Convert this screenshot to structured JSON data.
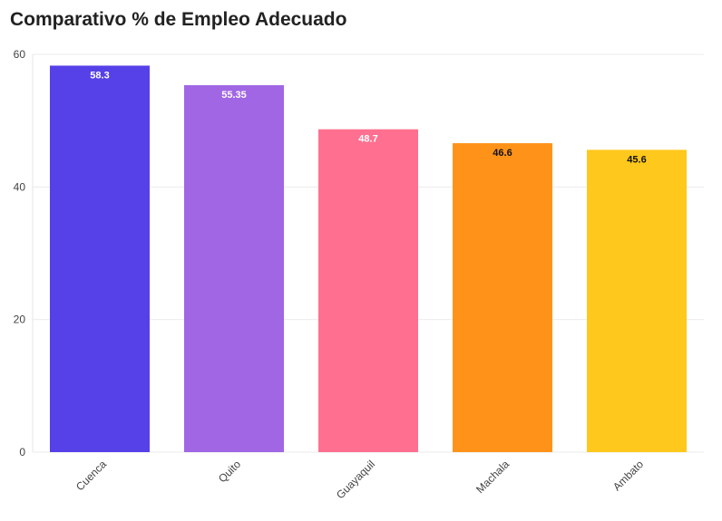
{
  "chart_data": {
    "type": "bar",
    "title": "Comparativo % de Empleo Adecuado",
    "categories": [
      "Cuenca",
      "Quito",
      "Guayaquil",
      "Machala",
      "Ambato"
    ],
    "values": [
      58.3,
      55.35,
      48.7,
      46.6,
      45.6
    ],
    "value_labels": [
      "58.3",
      "55.35",
      "48.7",
      "46.6",
      "45.6"
    ],
    "colors": [
      "#5640e8",
      "#a066e4",
      "#ff7090",
      "#ff931a",
      "#ffc81c"
    ],
    "label_colors": [
      "#ffffff",
      "#ffffff",
      "#ffffff",
      "#111111",
      "#111111"
    ],
    "ylim": [
      0,
      60
    ],
    "yticks": [
      0,
      20,
      40,
      60
    ],
    "ytick_labels": [
      "0",
      "20",
      "40",
      "60"
    ],
    "grid": true,
    "xlabel": "",
    "ylabel": ""
  }
}
